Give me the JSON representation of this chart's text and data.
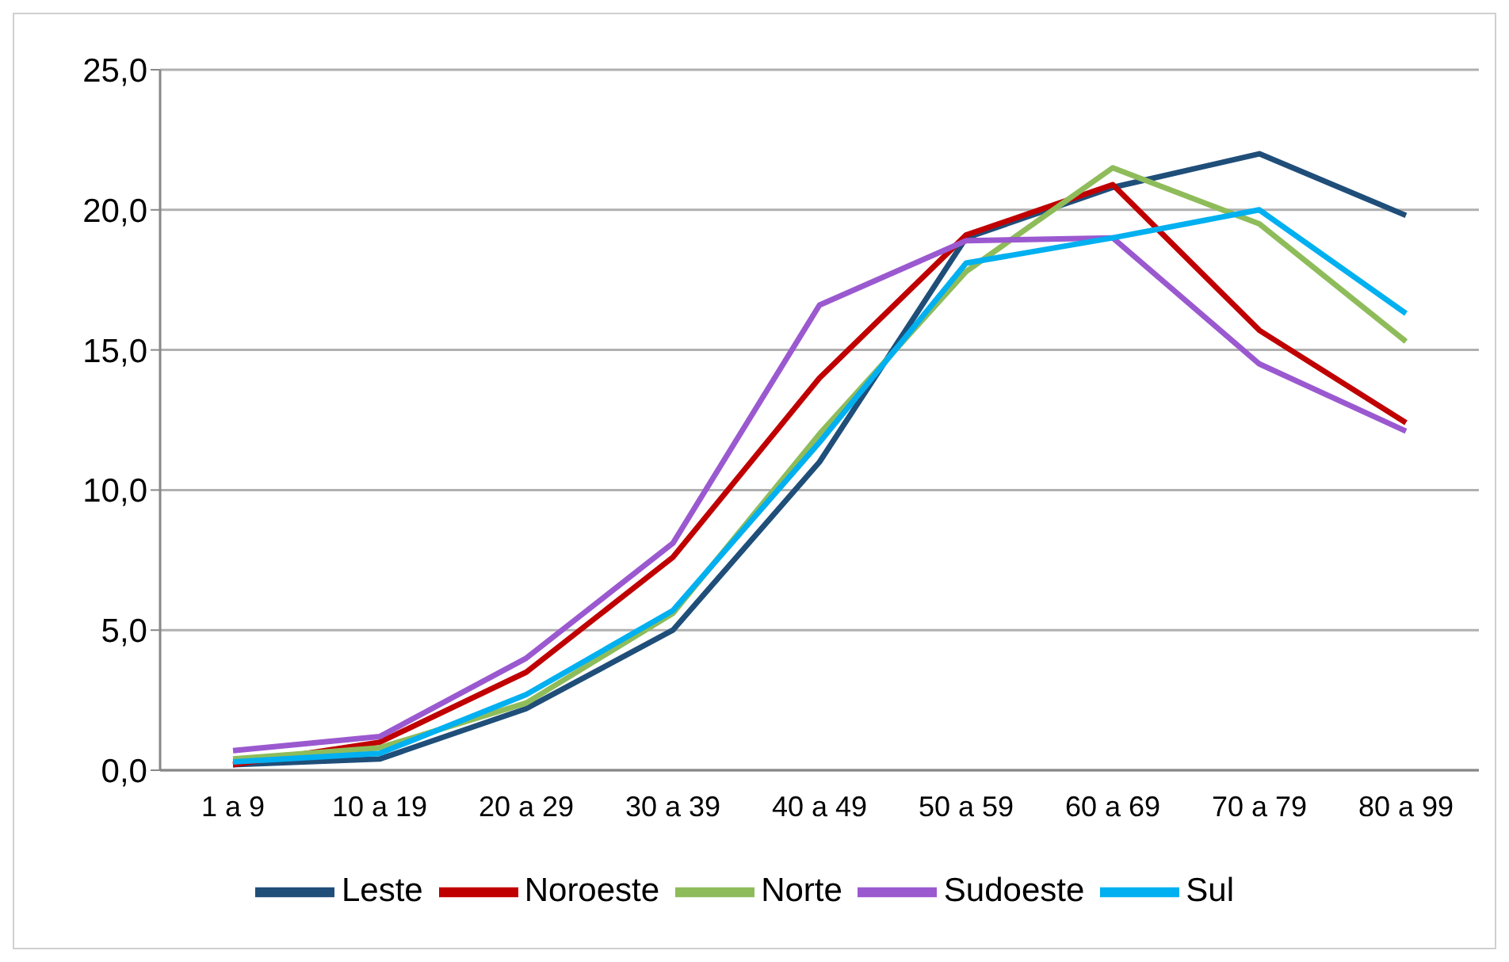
{
  "chart_data": {
    "type": "line",
    "categories": [
      "1 a 9",
      "10 a 19",
      "20 a 29",
      "30 a 39",
      "40 a 49",
      "50 a 59",
      "60 a 69",
      "70 a 79",
      "80 a 99"
    ],
    "series": [
      {
        "name": "Leste",
        "color": "#1f4e79",
        "values": [
          0.2,
          0.4,
          2.2,
          5.0,
          11.0,
          19.0,
          20.8,
          22.0,
          19.8
        ]
      },
      {
        "name": "Noroeste",
        "color": "#c00000",
        "values": [
          0.2,
          1.0,
          3.5,
          7.6,
          14.0,
          19.1,
          20.9,
          15.7,
          12.4
        ]
      },
      {
        "name": "Norte",
        "color": "#8fbc5a",
        "values": [
          0.4,
          0.8,
          2.4,
          5.6,
          12.0,
          17.8,
          21.5,
          19.5,
          15.3
        ]
      },
      {
        "name": "Sudoeste",
        "color": "#9b59d0",
        "values": [
          0.7,
          1.2,
          4.0,
          8.1,
          16.6,
          18.9,
          19.0,
          14.5,
          12.1
        ]
      },
      {
        "name": "Sul",
        "color": "#00b0f0",
        "values": [
          0.3,
          0.6,
          2.7,
          5.7,
          11.7,
          18.1,
          19.0,
          20.0,
          16.3
        ]
      }
    ],
    "ylim": [
      0,
      25
    ],
    "yticks": [
      {
        "value": 0,
        "label": "0,0"
      },
      {
        "value": 5,
        "label": "5,0"
      },
      {
        "value": 10,
        "label": "10,0"
      },
      {
        "value": 15,
        "label": "15,0"
      },
      {
        "value": 20,
        "label": "20,0"
      },
      {
        "value": 25,
        "label": "25,0"
      }
    ],
    "grid": "y",
    "legend": "bottom",
    "marker": "none",
    "line_style": "solid"
  }
}
